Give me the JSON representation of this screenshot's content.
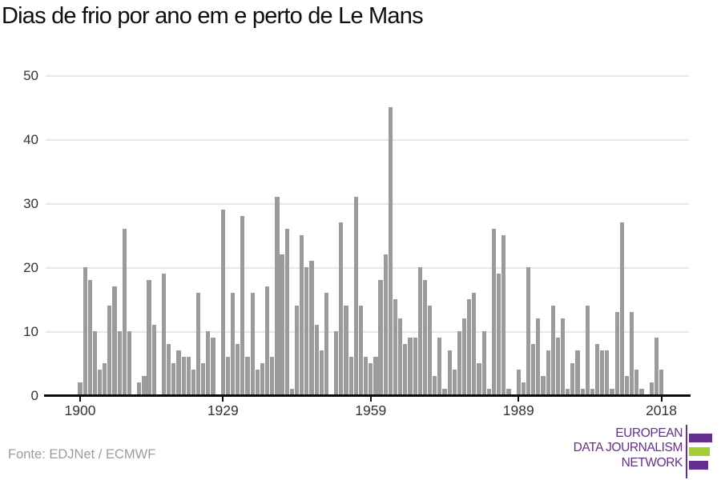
{
  "title": "Dias de frio por ano em e perto de Le Mans",
  "source": "Fonte: EDJNet / ECMWF",
  "logo": {
    "line1": "EUROPEAN",
    "line2": "DATA JOURNALISM",
    "line3": "NETWORK",
    "purple": "#662d91",
    "green": "#a3cd3a"
  },
  "colors": {
    "bar": "#9b9b9b",
    "gridline": "#e8e8e8",
    "axis": "#0b0b0b",
    "tick_label": "#333333"
  },
  "chart_data": {
    "type": "bar",
    "title": "Dias de frio por ano em e perto de Le Mans",
    "xlabel": "",
    "ylabel": "",
    "start_year": 1900,
    "end_year": 2018,
    "values": [
      2,
      20,
      18,
      10,
      4,
      5,
      14,
      17,
      10,
      26,
      10,
      0,
      2,
      3,
      18,
      11,
      0,
      19,
      8,
      5,
      7,
      6,
      6,
      4,
      16,
      5,
      10,
      9,
      0,
      29,
      6,
      16,
      8,
      28,
      6,
      16,
      4,
      5,
      17,
      6,
      31,
      22,
      26,
      1,
      14,
      25,
      20,
      21,
      11,
      7,
      16,
      0,
      10,
      27,
      14,
      6,
      31,
      14,
      6,
      5,
      6,
      18,
      22,
      45,
      15,
      12,
      8,
      9,
      9,
      20,
      18,
      14,
      3,
      9,
      1,
      7,
      4,
      10,
      12,
      15,
      16,
      5,
      10,
      1,
      26,
      19,
      25,
      1,
      0,
      4,
      2,
      20,
      8,
      12,
      3,
      7,
      14,
      9,
      12,
      1,
      5,
      7,
      1,
      14,
      1,
      8,
      7,
      7,
      1,
      13,
      27,
      3,
      13,
      4,
      1,
      0,
      2,
      9,
      4
    ],
    "xticks": [
      1900,
      1929,
      1959,
      1989,
      2018
    ],
    "yticks": [
      0,
      10,
      20,
      30,
      40,
      50
    ],
    "ylim": [
      0,
      50
    ],
    "grid": true,
    "legend": null
  }
}
